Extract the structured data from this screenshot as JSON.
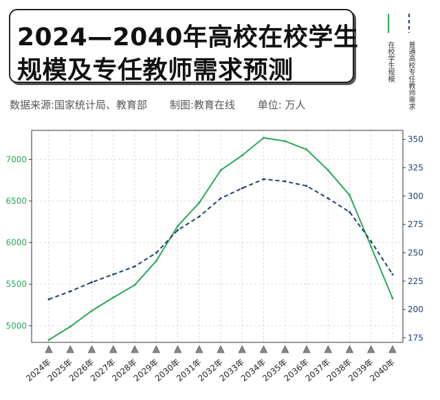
{
  "header": {
    "title_line1": "2024—2040年高校在校学生",
    "title_line2": "规模及专任教师需求预测",
    "source": "数据来源:国家统计局、教育部",
    "made_by": "制图:教育在线",
    "unit": "单位:  万人"
  },
  "legend": {
    "green_label": "在校学生规模",
    "blue_label": "普通高校专任教师需求"
  },
  "colors": {
    "students": "#2aa65a",
    "teachers": "#1f3f6e",
    "grid": "#d9d9d9",
    "axis": "#333333"
  },
  "chart_data": {
    "type": "line",
    "categories": [
      "2024年",
      "2025年",
      "2026年",
      "2027年",
      "2028年",
      "2029年",
      "2030年",
      "2031年",
      "2032年",
      "2033年",
      "2034年",
      "2035年",
      "2036年",
      "2037年",
      "2038年",
      "2039年",
      "2040年"
    ],
    "series": [
      {
        "name": "在校学生规模",
        "axis": "left",
        "style": "solid",
        "values": [
          4830,
          4990,
          5180,
          5340,
          5490,
          5780,
          6200,
          6480,
          6870,
          7050,
          7260,
          7220,
          7120,
          6870,
          6570,
          5950,
          5330
        ]
      },
      {
        "name": "普通高校专任教师需求",
        "axis": "right",
        "style": "dashed",
        "values": [
          209,
          216,
          224,
          231,
          238,
          250,
          270,
          282,
          298,
          307,
          315,
          313,
          309,
          298,
          286,
          260,
          231
        ]
      }
    ],
    "y_left": {
      "ylim": [
        4800,
        7350
      ],
      "ticks": [
        5000,
        5500,
        6000,
        6500,
        7000
      ]
    },
    "y_right": {
      "ylim": [
        171,
        358
      ],
      "ticks": [
        175,
        200,
        225,
        250,
        275,
        300,
        325,
        350
      ]
    },
    "grid": true
  }
}
